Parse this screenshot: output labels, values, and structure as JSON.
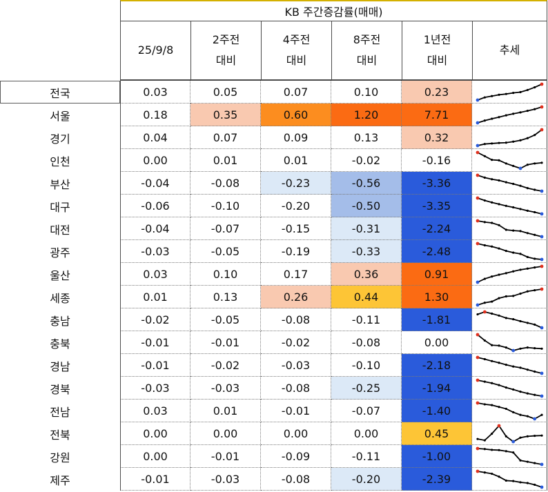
{
  "header": {
    "title": "KB 주간증감률(매매)",
    "columns": [
      {
        "line1": "25/9/8",
        "line2": ""
      },
      {
        "line1": "2주전",
        "line2": "대비"
      },
      {
        "line1": "4주전",
        "line2": "대비"
      },
      {
        "line1": "8주전",
        "line2": "대비"
      },
      {
        "line1": "1년전",
        "line2": "대비"
      },
      {
        "line1": "추세",
        "line2": ""
      }
    ]
  },
  "chart_data": {
    "type": "table",
    "title": "KB 주간증감률(매매)",
    "columns": [
      "25/9/8",
      "2주전 대비",
      "4주전 대비",
      "8주전 대비",
      "1년전 대비",
      "추세"
    ],
    "rows": [
      {
        "region": "전국",
        "values": [
          "0.03",
          "0.05",
          "0.07",
          "0.10",
          "0.23"
        ],
        "bg": [
          "",
          "",
          "",
          "",
          "#f9c9b0"
        ],
        "trend": [
          2,
          3,
          3.5,
          4,
          4.3,
          4.7,
          5,
          5.8,
          6.8,
          8
        ]
      },
      {
        "region": "서울",
        "values": [
          "0.18",
          "0.35",
          "0.60",
          "1.20",
          "7.71"
        ],
        "bg": [
          "",
          "#f9c9b0",
          "#fc8d1f",
          "#fb6b13",
          "#fb6b13"
        ],
        "trend": [
          1,
          2,
          2.8,
          3.5,
          4.3,
          5,
          5.6,
          6.3,
          7,
          8
        ]
      },
      {
        "region": "경기",
        "values": [
          "0.04",
          "0.07",
          "0.09",
          "0.13",
          "0.32"
        ],
        "bg": [
          "",
          "",
          "",
          "",
          "#f9c9b0"
        ],
        "trend": [
          2,
          2.6,
          2.8,
          3,
          3.1,
          3.5,
          4,
          4.8,
          6,
          8
        ]
      },
      {
        "region": "인천",
        "values": [
          "0.00",
          "0.01",
          "0.01",
          "-0.02",
          "-0.16"
        ],
        "bg": [
          "",
          "",
          "",
          "",
          ""
        ],
        "trend": [
          8,
          6.5,
          5,
          4.8,
          3.5,
          2.5,
          1.5,
          3,
          3.5,
          3.8
        ]
      },
      {
        "region": "부산",
        "values": [
          "-0.04",
          "-0.08",
          "-0.23",
          "-0.56",
          "-3.36"
        ],
        "bg": [
          "",
          "",
          "#dce9f7",
          "#a4bde9",
          "#2a5bdb"
        ],
        "trend": [
          8,
          7,
          6.3,
          5.8,
          5,
          4.3,
          3.5,
          2.5,
          1.8,
          1.2
        ]
      },
      {
        "region": "대구",
        "values": [
          "-0.06",
          "-0.10",
          "-0.20",
          "-0.50",
          "-3.35"
        ],
        "bg": [
          "",
          "",
          "",
          "#a4bde9",
          "#2a5bdb"
        ],
        "trend": [
          8,
          7,
          6.2,
          5.5,
          4.8,
          4.2,
          3.5,
          2.8,
          2.2,
          1.5
        ]
      },
      {
        "region": "대전",
        "values": [
          "-0.04",
          "-0.07",
          "-0.15",
          "-0.31",
          "-2.24"
        ],
        "bg": [
          "",
          "",
          "",
          "#dce9f7",
          "#2a5bdb"
        ],
        "trend": [
          8,
          7.5,
          7.2,
          6.3,
          4.5,
          4.2,
          4,
          3.2,
          2.5,
          1.8
        ]
      },
      {
        "region": "광주",
        "values": [
          "-0.03",
          "-0.05",
          "-0.19",
          "-0.33",
          "-2.48"
        ],
        "bg": [
          "",
          "",
          "",
          "#dce9f7",
          "#2a5bdb"
        ],
        "trend": [
          8,
          7.3,
          6.8,
          6,
          5,
          4.3,
          3.8,
          2.5,
          1.8,
          1.5
        ]
      },
      {
        "region": "울산",
        "values": [
          "0.03",
          "0.10",
          "0.17",
          "0.36",
          "0.91"
        ],
        "bg": [
          "",
          "",
          "",
          "#f9c9b0",
          "#fb6b13"
        ],
        "trend": [
          1,
          2.5,
          3.5,
          4.3,
          5,
          5.8,
          6.5,
          7,
          7.5,
          8
        ]
      },
      {
        "region": "세종",
        "values": [
          "0.01",
          "0.13",
          "0.26",
          "0.44",
          "1.30"
        ],
        "bg": [
          "",
          "",
          "#f9c9b0",
          "#fdc536",
          "#fb6b13"
        ],
        "trend": [
          1,
          2,
          2.5,
          4,
          4.8,
          5,
          6,
          7,
          7.5,
          8
        ]
      },
      {
        "region": "충남",
        "values": [
          "-0.02",
          "-0.05",
          "-0.08",
          "-0.11",
          "-1.81"
        ],
        "bg": [
          "",
          "",
          "",
          "",
          "#2a5bdb"
        ],
        "trend": [
          7,
          8,
          7.3,
          6.5,
          5.5,
          5,
          4.2,
          3.5,
          2.8,
          1.5
        ]
      },
      {
        "region": "충북",
        "values": [
          "-0.01",
          "-0.01",
          "-0.02",
          "-0.08",
          "0.00"
        ],
        "bg": [
          "",
          "",
          "",
          "",
          ""
        ],
        "trend": [
          8,
          5.5,
          3.5,
          3.3,
          2.5,
          1.2,
          2,
          2.5,
          2.2,
          2
        ]
      },
      {
        "region": "경남",
        "values": [
          "-0.01",
          "-0.02",
          "-0.03",
          "-0.10",
          "-2.18"
        ],
        "bg": [
          "",
          "",
          "",
          "",
          "#2a5bdb"
        ],
        "trend": [
          8,
          7.3,
          6.5,
          5.8,
          5,
          4.3,
          3.8,
          3,
          2.2,
          1.5
        ]
      },
      {
        "region": "경북",
        "values": [
          "-0.03",
          "-0.03",
          "-0.08",
          "-0.25",
          "-1.94"
        ],
        "bg": [
          "",
          "",
          "",
          "#dce9f7",
          "#2a5bdb"
        ],
        "trend": [
          8,
          7.4,
          6.8,
          6,
          5,
          4.2,
          3.3,
          2.6,
          2,
          1.5
        ]
      },
      {
        "region": "전남",
        "values": [
          "0.03",
          "0.01",
          "-0.01",
          "-0.07",
          "-1.40"
        ],
        "bg": [
          "",
          "",
          "",
          "",
          "#2a5bdb"
        ],
        "trend": [
          8,
          7.5,
          7.2,
          6.5,
          5.8,
          4.5,
          3.5,
          3,
          2,
          3.5
        ]
      },
      {
        "region": "전북",
        "values": [
          "0.00",
          "0.00",
          "0.00",
          "0.00",
          "0.45"
        ],
        "bg": [
          "",
          "",
          "",
          "",
          "#fdc536"
        ],
        "trend": [
          3,
          2.5,
          5,
          8,
          4,
          2,
          3.5,
          4,
          4.2,
          4.3
        ]
      },
      {
        "region": "강원",
        "values": [
          "0.00",
          "-0.01",
          "-0.09",
          "-0.11",
          "-1.00"
        ],
        "bg": [
          "",
          "",
          "",
          "",
          "#2a5bdb"
        ],
        "trend": [
          8,
          7.8,
          7.5,
          7.4,
          7,
          6.5,
          3.5,
          3,
          2.5,
          2
        ]
      },
      {
        "region": "제주",
        "values": [
          "-0.01",
          "-0.03",
          "-0.08",
          "-0.20",
          "-2.39"
        ],
        "bg": [
          "",
          "",
          "",
          "#dce9f7",
          "#2a5bdb"
        ],
        "trend": [
          8,
          7.5,
          7,
          5.8,
          4.2,
          4,
          3.5,
          3.2,
          2.5,
          1.5
        ]
      }
    ]
  },
  "colors": {
    "spark_line": "#000000",
    "spark_start": "#2a5bdb",
    "spark_end": "#e0301e",
    "spark_low": "#2a5bdb",
    "spark_high": "#e0301e"
  }
}
